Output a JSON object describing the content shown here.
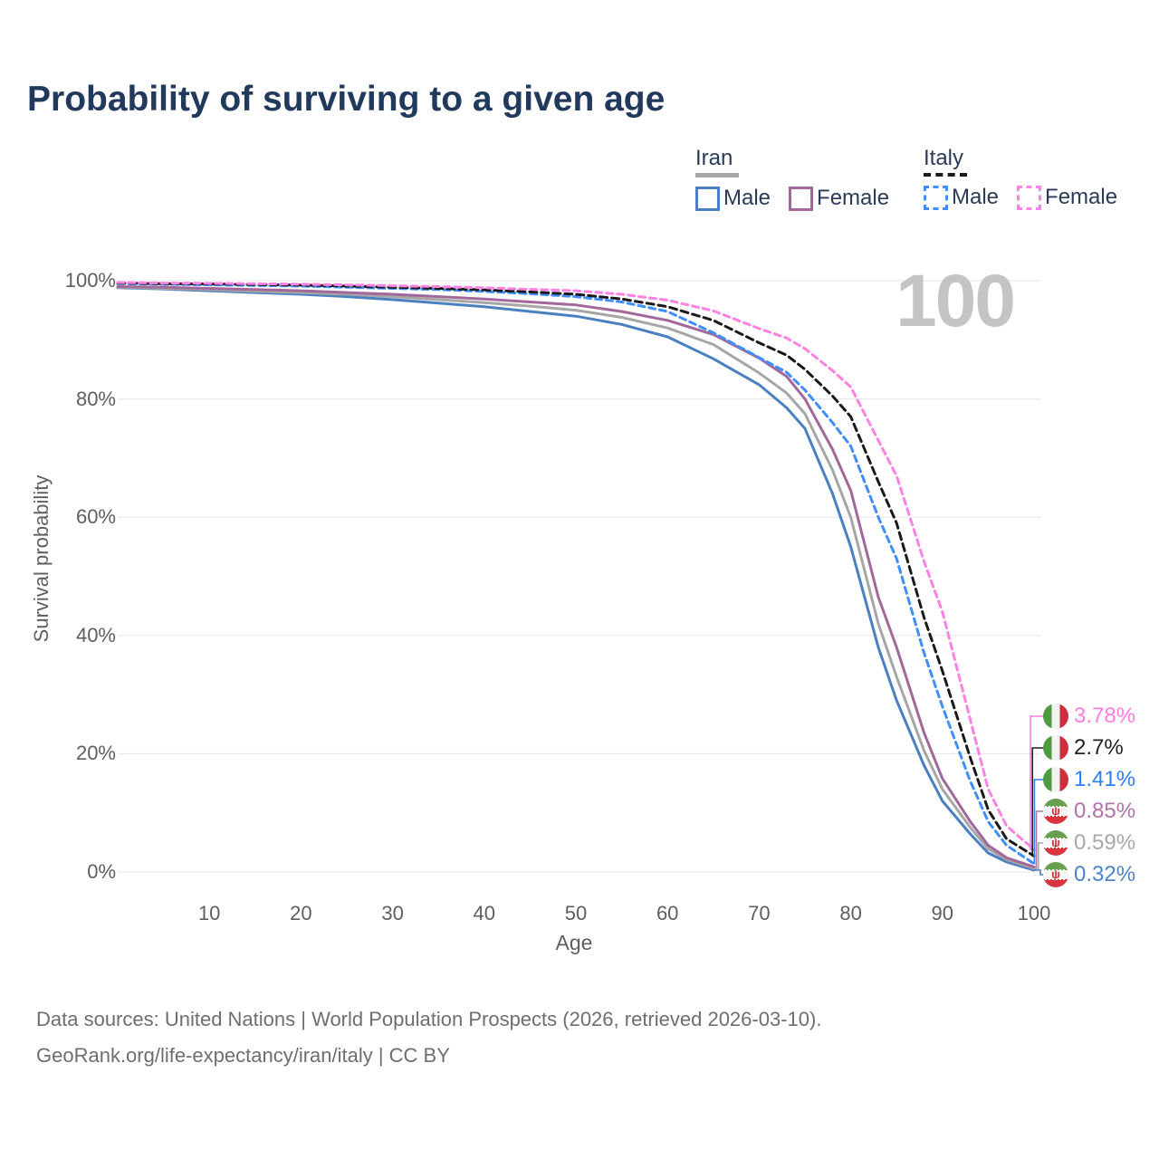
{
  "title": "Probability of surviving to a given age",
  "watermark": "100",
  "legend": {
    "iran": {
      "label": "Iran",
      "male": "Male",
      "female": "Female"
    },
    "italy": {
      "label": "Italy",
      "male": "Male",
      "female": "Female"
    }
  },
  "chart_data": {
    "type": "line",
    "xlabel": "Age",
    "ylabel": "Survival probability",
    "xlim": [
      0,
      100
    ],
    "ylim": [
      0,
      100
    ],
    "grid": "horizontal",
    "x_ticks": [
      10,
      20,
      30,
      40,
      50,
      60,
      70,
      80,
      90,
      100
    ],
    "y_ticks": [
      {
        "label": "0%",
        "value": 0
      },
      {
        "label": "20%",
        "value": 20
      },
      {
        "label": "40%",
        "value": 40
      },
      {
        "label": "60%",
        "value": 60
      },
      {
        "label": "80%",
        "value": 80
      },
      {
        "label": "100%",
        "value": 100
      }
    ],
    "series": [
      {
        "key": "iran-male",
        "name": "Iran Male",
        "country": "Iran",
        "sex": "Male",
        "color": "#4a7fc1",
        "dash": "",
        "points": [
          [
            0,
            98.8
          ],
          [
            5,
            98.6
          ],
          [
            10,
            98.3
          ],
          [
            15,
            98.0
          ],
          [
            20,
            97.7
          ],
          [
            25,
            97.3
          ],
          [
            30,
            96.8
          ],
          [
            35,
            96.2
          ],
          [
            40,
            95.6
          ],
          [
            45,
            94.8
          ],
          [
            50,
            94.0
          ],
          [
            55,
            92.6
          ],
          [
            60,
            90.5
          ],
          [
            65,
            86.8
          ],
          [
            70,
            82.4
          ],
          [
            73,
            78.5
          ],
          [
            75,
            75.0
          ],
          [
            78,
            64.0
          ],
          [
            80,
            55.0
          ],
          [
            83,
            38.0
          ],
          [
            85,
            29.0
          ],
          [
            88,
            18.0
          ],
          [
            90,
            12.0
          ],
          [
            93,
            6.5
          ],
          [
            95,
            3.2
          ],
          [
            97,
            1.7
          ],
          [
            100,
            0.32
          ]
        ]
      },
      {
        "key": "iran-total",
        "name": "Iran Total",
        "country": "Iran",
        "sex": "Both",
        "color": "#a6a6a6",
        "dash": "",
        "points": [
          [
            0,
            98.9
          ],
          [
            5,
            98.7
          ],
          [
            10,
            98.5
          ],
          [
            15,
            98.2
          ],
          [
            20,
            98.0
          ],
          [
            25,
            97.7
          ],
          [
            30,
            97.3
          ],
          [
            35,
            96.8
          ],
          [
            40,
            96.3
          ],
          [
            45,
            95.7
          ],
          [
            50,
            95.0
          ],
          [
            55,
            93.8
          ],
          [
            60,
            92.0
          ],
          [
            65,
            89.2
          ],
          [
            70,
            84.4
          ],
          [
            73,
            81.0
          ],
          [
            75,
            77.5
          ],
          [
            78,
            68.0
          ],
          [
            80,
            60.0
          ],
          [
            83,
            42.0
          ],
          [
            85,
            33.0
          ],
          [
            88,
            20.5
          ],
          [
            90,
            14.0
          ],
          [
            93,
            7.6
          ],
          [
            95,
            3.9
          ],
          [
            97,
            2.1
          ],
          [
            100,
            0.59
          ]
        ]
      },
      {
        "key": "iran-female",
        "name": "Iran Female",
        "country": "Iran",
        "sex": "Female",
        "color": "#a2689b",
        "dash": "",
        "points": [
          [
            0,
            99.0
          ],
          [
            5,
            98.9
          ],
          [
            10,
            98.7
          ],
          [
            15,
            98.5
          ],
          [
            20,
            98.3
          ],
          [
            25,
            98.0
          ],
          [
            30,
            97.7
          ],
          [
            35,
            97.3
          ],
          [
            40,
            96.9
          ],
          [
            45,
            96.4
          ],
          [
            50,
            95.9
          ],
          [
            55,
            94.8
          ],
          [
            60,
            93.3
          ],
          [
            65,
            90.9
          ],
          [
            70,
            86.9
          ],
          [
            73,
            83.8
          ],
          [
            75,
            80.0
          ],
          [
            78,
            71.5
          ],
          [
            80,
            64.5
          ],
          [
            83,
            46.5
          ],
          [
            85,
            38.0
          ],
          [
            88,
            23.5
          ],
          [
            90,
            15.8
          ],
          [
            93,
            8.6
          ],
          [
            95,
            4.5
          ],
          [
            97,
            2.4
          ],
          [
            100,
            0.85
          ]
        ]
      },
      {
        "key": "italy-male",
        "name": "Italy Male",
        "country": "Italy",
        "sex": "Male",
        "color": "#3f8efc",
        "dash": "7 5",
        "points": [
          [
            0,
            99.5
          ],
          [
            5,
            99.4
          ],
          [
            10,
            99.3
          ],
          [
            15,
            99.2
          ],
          [
            20,
            99.1
          ],
          [
            25,
            98.9
          ],
          [
            30,
            98.7
          ],
          [
            35,
            98.5
          ],
          [
            40,
            98.2
          ],
          [
            45,
            97.8
          ],
          [
            50,
            97.3
          ],
          [
            55,
            96.4
          ],
          [
            60,
            94.8
          ],
          [
            65,
            91.2
          ],
          [
            70,
            87.0
          ],
          [
            73,
            84.5
          ],
          [
            75,
            81.5
          ],
          [
            78,
            76.0
          ],
          [
            80,
            72.0
          ],
          [
            83,
            60.0
          ],
          [
            85,
            53.0
          ],
          [
            88,
            37.0
          ],
          [
            90,
            28.0
          ],
          [
            93,
            15.5
          ],
          [
            95,
            8.5
          ],
          [
            97,
            4.5
          ],
          [
            100,
            1.41
          ]
        ]
      },
      {
        "key": "italy-total",
        "name": "Italy Total",
        "country": "Italy",
        "sex": "Both",
        "color": "#1a1a1a",
        "dash": "8 5",
        "points": [
          [
            0,
            99.6
          ],
          [
            5,
            99.5
          ],
          [
            10,
            99.45
          ],
          [
            15,
            99.35
          ],
          [
            20,
            99.25
          ],
          [
            25,
            99.1
          ],
          [
            30,
            98.9
          ],
          [
            35,
            98.7
          ],
          [
            40,
            98.45
          ],
          [
            45,
            98.1
          ],
          [
            50,
            97.7
          ],
          [
            55,
            96.9
          ],
          [
            60,
            95.6
          ],
          [
            65,
            93.3
          ],
          [
            70,
            89.5
          ],
          [
            73,
            87.4
          ],
          [
            75,
            85.0
          ],
          [
            78,
            80.5
          ],
          [
            80,
            77.0
          ],
          [
            83,
            66.0
          ],
          [
            85,
            59.0
          ],
          [
            88,
            43.0
          ],
          [
            90,
            34.0
          ],
          [
            93,
            19.5
          ],
          [
            95,
            10.5
          ],
          [
            97,
            5.6
          ],
          [
            100,
            2.7
          ]
        ]
      },
      {
        "key": "italy-female",
        "name": "Italy Female",
        "country": "Italy",
        "sex": "Female",
        "color": "#ff82e2",
        "dash": "7 5",
        "points": [
          [
            0,
            99.7
          ],
          [
            5,
            99.6
          ],
          [
            10,
            99.55
          ],
          [
            15,
            99.5
          ],
          [
            20,
            99.4
          ],
          [
            25,
            99.3
          ],
          [
            30,
            99.15
          ],
          [
            35,
            99.0
          ],
          [
            40,
            98.8
          ],
          [
            45,
            98.55
          ],
          [
            50,
            98.3
          ],
          [
            55,
            97.7
          ],
          [
            60,
            96.7
          ],
          [
            65,
            94.9
          ],
          [
            70,
            91.9
          ],
          [
            73,
            90.3
          ],
          [
            75,
            88.5
          ],
          [
            78,
            84.8
          ],
          [
            80,
            82.0
          ],
          [
            83,
            73.0
          ],
          [
            85,
            67.0
          ],
          [
            88,
            52.5
          ],
          [
            90,
            44.0
          ],
          [
            93,
            26.0
          ],
          [
            95,
            14.0
          ],
          [
            97,
            7.8
          ],
          [
            100,
            3.78
          ]
        ]
      }
    ],
    "end_labels": [
      {
        "key": "italy-female",
        "value": "3.78%",
        "color": "#ff7ce1",
        "flag": "italy",
        "y_value": 3.78
      },
      {
        "key": "italy-total",
        "value": "2.7%",
        "color": "#1f1f1f",
        "flag": "italy",
        "y_value": 2.7
      },
      {
        "key": "italy-male",
        "value": "1.41%",
        "color": "#2f7ff7",
        "flag": "italy",
        "y_value": 1.41
      },
      {
        "key": "iran-female",
        "value": "0.85%",
        "color": "#b173a9",
        "flag": "iran",
        "y_value": 0.85
      },
      {
        "key": "iran-total",
        "value": "0.59%",
        "color": "#a8a8a8",
        "flag": "iran",
        "y_value": 0.59
      },
      {
        "key": "iran-male",
        "value": "0.32%",
        "color": "#4d82c6",
        "flag": "iran",
        "y_value": 0.32
      }
    ]
  },
  "footer": {
    "line1": "Data sources: United Nations | World Population Prospects (2026, retrieved 2026-03-10).",
    "line2": "GeoRank.org/life-expectancy/iran/italy | CC BY"
  }
}
